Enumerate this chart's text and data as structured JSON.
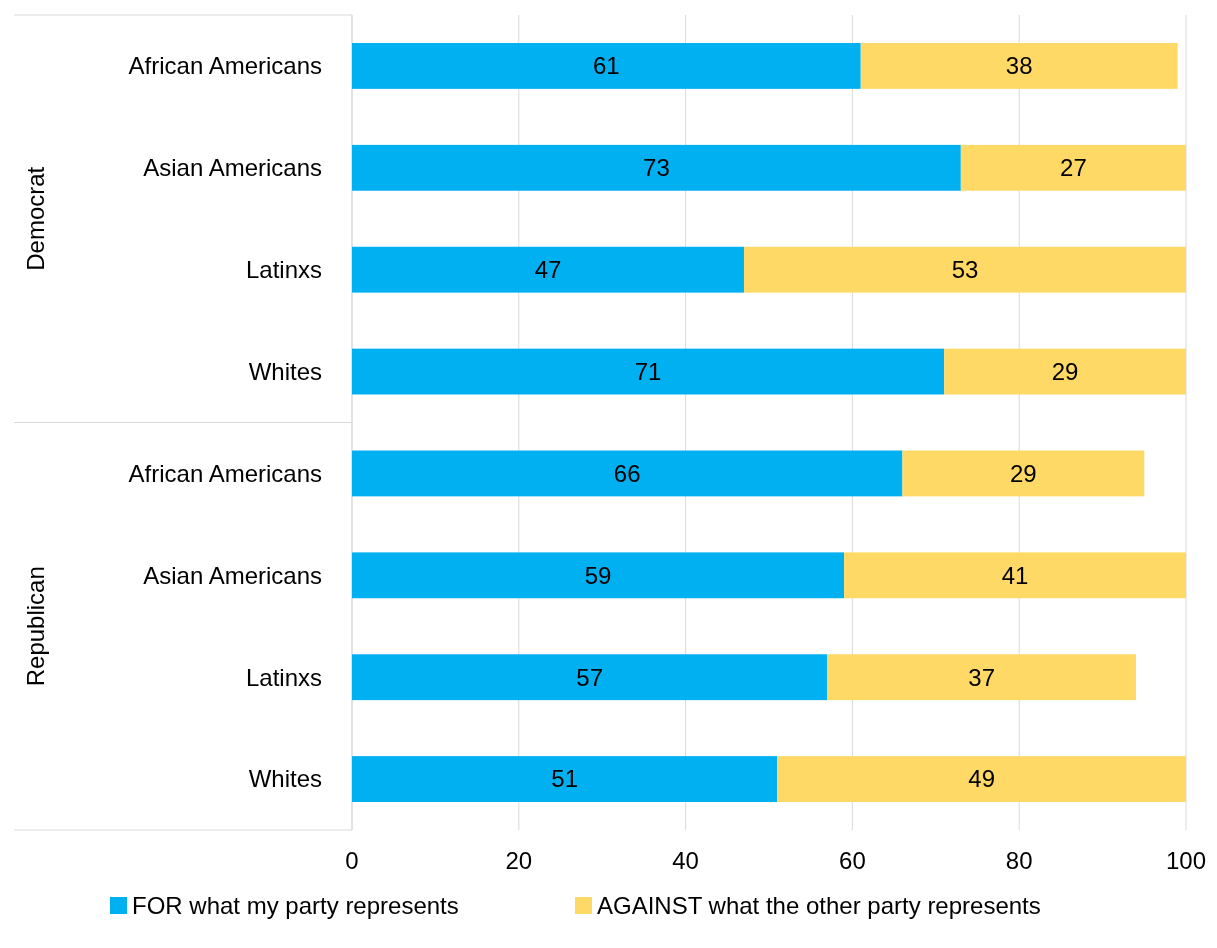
{
  "chart_data": {
    "type": "bar",
    "orientation": "horizontal",
    "stacked": true,
    "data_labels": true,
    "grid": "x",
    "legend": "bottom",
    "categories": [
      "African Americans",
      "Asian Americans",
      "Latinxs",
      "Whites",
      "African Americans",
      "Asian Americans",
      "Latinxs",
      "Whites"
    ],
    "annotations": [
      "Democrat",
      "Republican"
    ],
    "xlim": [
      0,
      100
    ],
    "xticks": [
      0,
      20,
      40,
      60,
      80,
      100
    ],
    "series": [
      {
        "name": "FOR what my party represents",
        "color": "#00b0f0",
        "values": [
          61,
          73,
          47,
          71,
          66,
          59,
          57,
          51
        ]
      },
      {
        "name": "AGAINST what the other party represents",
        "color": "#ffd966",
        "values": [
          38,
          27,
          53,
          29,
          29,
          41,
          37,
          49
        ]
      }
    ]
  }
}
